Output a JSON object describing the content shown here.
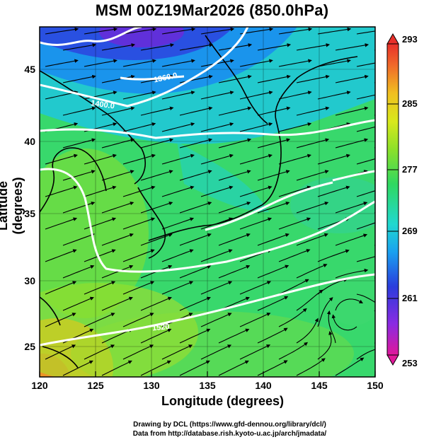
{
  "title": "MSM 00Z19Mar2026 (850.0hPa)",
  "axes": {
    "xlabel": "Longitude (degrees)",
    "ylabel": "Latitude  (degrees)",
    "xlim": [
      120,
      150
    ],
    "ylim": [
      22.4,
      47.6
    ],
    "xticks": [
      "120",
      "125",
      "130",
      "135",
      "140",
      "145",
      "150"
    ],
    "yticks": [
      "25",
      "30",
      "35",
      "40",
      "45"
    ]
  },
  "colorbar": {
    "ticks": [
      "293",
      "285",
      "277",
      "269",
      "261",
      "253"
    ],
    "range": [
      253,
      293
    ],
    "colors": [
      "#e0189a",
      "#8a2be2",
      "#2a3cdc",
      "#1aa0f0",
      "#20d8d0",
      "#30d860",
      "#8ce02a",
      "#d8e81c",
      "#f0c020",
      "#f06a2a",
      "#e8302a"
    ]
  },
  "contours": {
    "labels": [
      "1360.0",
      "1400.0",
      "1520"
    ],
    "color": "#ffffff"
  },
  "credits": [
    "Drawing by DCL (https://www.gfd-dennou.org/library/dcl/)",
    "Data from http://database.rish.kyoto-u.ac.jp/arch/jmadata/"
  ]
}
